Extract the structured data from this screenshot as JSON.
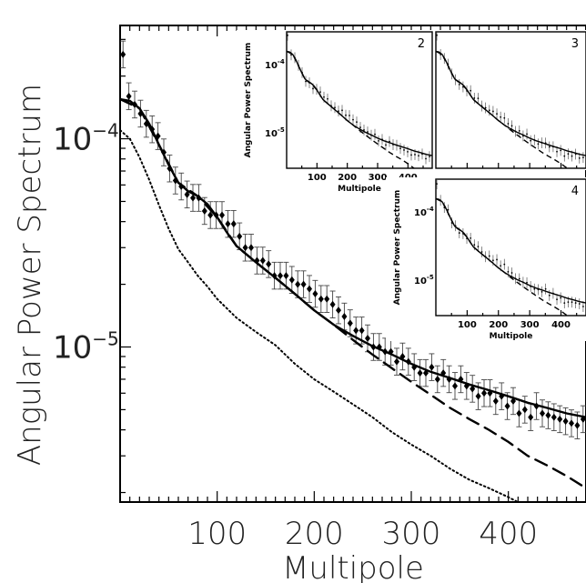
{
  "chart_data": [
    {
      "panel": "main",
      "type": "line",
      "log_y": true,
      "xlabel": "Multipole",
      "ylabel": "Angular Power Spectrum",
      "xlim": [
        0,
        480
      ],
      "ylim": [
        1.8e-06,
        0.00035
      ],
      "x_ticks": [
        {
          "value": 100,
          "label": "100"
        },
        {
          "value": 200,
          "label": "200"
        },
        {
          "value": 300,
          "label": "300"
        },
        {
          "value": 400,
          "label": "400"
        }
      ],
      "y_ticks": [
        {
          "value": 0.0001,
          "base": "10",
          "exp": "−4"
        },
        {
          "value": 1e-05,
          "base": "10",
          "exp": "−5"
        }
      ],
      "series": [
        {
          "style": "solid",
          "x": [
            0,
            10,
            20,
            30,
            40,
            50,
            60,
            70,
            80,
            90,
            100,
            110,
            120,
            140,
            160,
            180,
            200,
            220,
            240,
            260,
            280,
            300,
            320,
            340,
            360,
            380,
            400,
            420,
            440,
            460,
            480
          ],
          "y": [
            0.000155,
            0.000152,
            0.00014,
            0.000118,
            9.35e-05,
            7.5e-05,
            6.15e-05,
            5.6e-05,
            5.3e-05,
            4.85e-05,
            4.2e-05,
            3.55e-05,
            3.05e-05,
            2.55e-05,
            2.15e-05,
            1.8e-05,
            1.5e-05,
            1.28e-05,
            1.13e-05,
            1.01e-05,
            9.2e-06,
            8.3e-06,
            7.6e-06,
            7.1e-06,
            6.6e-06,
            6.2e-06,
            5.8e-06,
            5.4e-06,
            5.1e-06,
            4.8e-06,
            4.6e-06
          ]
        },
        {
          "style": "dashed",
          "x": [
            0,
            20,
            40,
            60,
            80,
            100,
            120,
            140,
            160,
            180,
            200,
            220,
            240,
            260,
            280,
            300,
            320,
            340,
            360,
            380,
            400,
            420,
            440,
            460,
            480
          ],
          "y": [
            0.000155,
            0.00014,
            9.35e-05,
            6.15e-05,
            5.3e-05,
            4.2e-05,
            3.05e-05,
            2.55e-05,
            2.15e-05,
            1.8e-05,
            1.5e-05,
            1.28e-05,
            1.08e-05,
            9.2e-06,
            7.9e-06,
            6.8e-06,
            5.9e-06,
            5.1e-06,
            4.5e-06,
            4e-06,
            3.5e-06,
            3e-06,
            2.7e-06,
            2.4e-06,
            2.1e-06
          ]
        },
        {
          "style": "dotted",
          "x": [
            0,
            10,
            20,
            30,
            40,
            50,
            60,
            70,
            80,
            90,
            100,
            120,
            140,
            160,
            180,
            200,
            220,
            240,
            260,
            280,
            300,
            320,
            340,
            360,
            380,
            400,
            420,
            440,
            460,
            480
          ],
          "y": [
            0.00011,
            0.0001,
            8.15e-05,
            6.35e-05,
            4.8e-05,
            3.7e-05,
            2.95e-05,
            2.55e-05,
            2.2e-05,
            1.95e-05,
            1.7e-05,
            1.38e-05,
            1.18e-05,
            1.02e-05,
            8.3e-06,
            7e-06,
            6.1e-06,
            5.3e-06,
            4.6e-06,
            3.9e-06,
            3.4e-06,
            3e-06,
            2.6e-06,
            2.3e-06,
            2.1e-06,
            1.9e-06,
            1.7e-06,
            1.6e-06,
            1.5e-06,
            1.4e-06
          ]
        }
      ],
      "points": {
        "marker": "diamond",
        "x": [
          3,
          9,
          15,
          21,
          27,
          33,
          39,
          45,
          51,
          57,
          63,
          69,
          75,
          81,
          87,
          93,
          99,
          105,
          111,
          117,
          123,
          129,
          135,
          141,
          147,
          153,
          159,
          165,
          171,
          177,
          183,
          189,
          195,
          201,
          207,
          213,
          219,
          225,
          231,
          237,
          243,
          249,
          255,
          261,
          267,
          273,
          279,
          285,
          291,
          297,
          303,
          309,
          315,
          321,
          327,
          333,
          339,
          345,
          351,
          357,
          363,
          369,
          375,
          381,
          387,
          393,
          399,
          405,
          411,
          417,
          423,
          429,
          435,
          441,
          447,
          453,
          459,
          465,
          471,
          477
        ],
        "y": [
          0.000254,
          0.00016,
          0.000146,
          0.000132,
          0.000118,
          0.000111,
          0.000103,
          8.6e-05,
          7.2e-05,
          6.3e-05,
          5.9e-05,
          5.4e-05,
          5.2e-05,
          5.2e-05,
          4.5e-05,
          4.3e-05,
          4.3e-05,
          4.3e-05,
          3.9e-05,
          3.9e-05,
          3.4e-05,
          3e-05,
          3e-05,
          2.6e-05,
          2.6e-05,
          2.5e-05,
          2.2e-05,
          2.2e-05,
          2.2e-05,
          2.1e-05,
          2e-05,
          2e-05,
          1.9e-05,
          1.8e-05,
          1.7e-05,
          1.7e-05,
          1.6e-05,
          1.5e-05,
          1.4e-05,
          1.3e-05,
          1.2e-05,
          1.2e-05,
          1.1e-05,
          1e-05,
          1e-05,
          9.5e-06,
          9.5e-06,
          8.5e-06,
          9e-06,
          8.5e-06,
          8e-06,
          7.5e-06,
          7.5e-06,
          8e-06,
          7e-06,
          7.5e-06,
          7e-06,
          6.5e-06,
          7e-06,
          6.5e-06,
          6.3e-06,
          5.8e-06,
          6e-06,
          6e-06,
          5.5e-06,
          5.8e-06,
          5.2e-06,
          5.5e-06,
          4.8e-06,
          5e-06,
          4.6e-06,
          5.2e-06,
          4.8e-06,
          4.7e-06,
          4.6e-06,
          4.5e-06,
          4.4e-06,
          4.3e-06,
          4.2e-06,
          4.5e-06
        ],
        "error_frac": 0.16
      }
    },
    {
      "panel": "inset-2",
      "type": "line",
      "log_y": true,
      "number": "2",
      "xlabel": "Multipole",
      "ylabel": "Angular Power Spectrum",
      "xlim": [
        0,
        480
      ],
      "ylim": [
        3e-06,
        0.0003
      ],
      "x_ticks": [
        "100",
        "200",
        "300",
        "400"
      ],
      "y_ticks": [
        {
          "value": 0.0001,
          "base": "10",
          "exp": "-4"
        },
        {
          "value": 1e-05,
          "base": "10",
          "exp": "-5"
        }
      ]
    },
    {
      "panel": "inset-3",
      "type": "line",
      "log_y": true,
      "number": "3",
      "xlim": [
        0,
        480
      ],
      "ylim": [
        3e-06,
        0.0003
      ]
    },
    {
      "panel": "inset-4",
      "type": "line",
      "log_y": true,
      "number": "4",
      "xlabel": "Multipole",
      "ylabel": "Angular Power Spectrum",
      "xlim": [
        0,
        480
      ],
      "ylim": [
        3e-06,
        0.0003
      ],
      "x_ticks": [
        "100",
        "200",
        "300",
        "400"
      ],
      "y_ticks": [
        {
          "value": 0.0001,
          "base": "10",
          "exp": "-4"
        },
        {
          "value": 1e-05,
          "base": "10",
          "exp": "-5"
        }
      ]
    }
  ]
}
